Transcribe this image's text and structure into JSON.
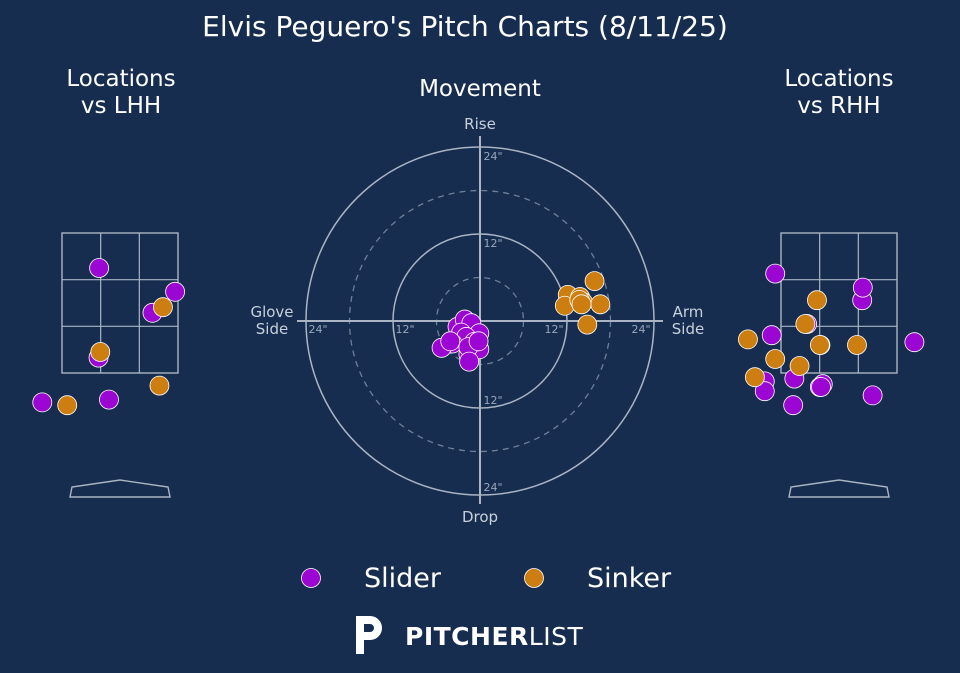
{
  "title": "Elvis Peguero's Pitch Charts (8/11/25)",
  "panels": {
    "lhh_title": "Locations\nvs LHH",
    "movement_title": "Movement",
    "rhh_title": "Locations\nvs RHH"
  },
  "movement_labels": {
    "rise": "Rise",
    "drop": "Drop",
    "glove_side": "Glove\nSide",
    "arm_side": "Arm\nSide",
    "ring_ticks": [
      "24\"",
      "12\"",
      "12\"",
      "24\"",
      "24\"",
      "12\"",
      "12\"",
      "24\""
    ]
  },
  "legend": [
    {
      "label": "Slider",
      "color": "#9b06d3"
    },
    {
      "label": "Sinker",
      "color": "#cc7e10"
    }
  ],
  "brand": {
    "bold": "PITCHER",
    "light": "LIST"
  },
  "colors": {
    "background": "#162d4f",
    "slider": "#9b06d3",
    "sinker": "#cc7e10",
    "grid": "#aab4c4"
  },
  "chart_data": [
    {
      "type": "scatter",
      "title": "Locations vs LHH",
      "x_unit": "zone width (-1 left edge, 1 right edge)",
      "y_unit": "zone height (0 bottom, 1 top)",
      "series": [
        {
          "name": "Slider",
          "points": [
            [
              -0.36,
              0.75
            ],
            [
              0.95,
              0.58
            ],
            [
              0.56,
              0.43
            ],
            [
              -0.37,
              0.11
            ],
            [
              -1.34,
              -0.21
            ],
            [
              -0.19,
              -0.19
            ]
          ]
        },
        {
          "name": "Sinker",
          "points": [
            [
              0.74,
              0.47
            ],
            [
              -0.34,
              0.15
            ],
            [
              0.68,
              -0.09
            ],
            [
              -0.91,
              -0.23
            ]
          ]
        }
      ]
    },
    {
      "type": "scatter",
      "title": "Movement",
      "x_unit": "inches (negative glove side, positive arm side)",
      "y_unit": "inches (positive rise, negative drop)",
      "x_range": [
        -24,
        24
      ],
      "y_range": [
        -24,
        24
      ],
      "series": [
        {
          "name": "Slider",
          "points": [
            [
              -3.1,
              -0.8
            ],
            [
              -2.1,
              0.2
            ],
            [
              -1.2,
              -0.3
            ],
            [
              -2.6,
              -1.6
            ],
            [
              -0.1,
              -1.7
            ],
            [
              -1.9,
              -2.2
            ],
            [
              -3.8,
              -3.1
            ],
            [
              -5.3,
              -3.7
            ],
            [
              -1.6,
              -4.6
            ],
            [
              -0.1,
              -3.9
            ],
            [
              -0.8,
              -2.9
            ],
            [
              -1.6,
              -3.6
            ],
            [
              -4.1,
              -2.8
            ],
            [
              -1.5,
              -5.6
            ],
            [
              -0.2,
              -2.8
            ]
          ]
        },
        {
          "name": "Sinker",
          "points": [
            [
              15.8,
              5.5
            ],
            [
              12.1,
              3.6
            ],
            [
              13.8,
              3.3
            ],
            [
              14.2,
              2.6
            ],
            [
              16.6,
              2.3
            ],
            [
              11.7,
              2.1
            ],
            [
              13.9,
              2.5
            ],
            [
              13.7,
              2.9
            ],
            [
              14.0,
              2.3
            ],
            [
              14.8,
              -0.5
            ]
          ]
        }
      ]
    },
    {
      "type": "scatter",
      "title": "Locations vs RHH",
      "x_unit": "zone width (-1 left edge, 1 right edge)",
      "y_unit": "zone height (0 bottom, 1 top)",
      "series": [
        {
          "name": "Slider",
          "points": [
            [
              -1.1,
              0.71
            ],
            [
              0.4,
              0.52
            ],
            [
              0.41,
              0.61
            ],
            [
              -0.55,
              0.35
            ],
            [
              -1.16,
              0.27
            ],
            [
              -0.32,
              0.2
            ],
            [
              -1.28,
              -0.06
            ],
            [
              -1.28,
              -0.13
            ],
            [
              -0.77,
              -0.04
            ],
            [
              -0.79,
              -0.23
            ],
            [
              -0.28,
              -0.08
            ],
            [
              -0.33,
              -0.1
            ],
            [
              0.58,
              -0.16
            ],
            [
              -0.31,
              -0.1
            ],
            [
              1.3,
              0.22
            ]
          ]
        },
        {
          "name": "Sinker",
          "points": [
            [
              -0.38,
              0.52
            ],
            [
              -0.58,
              0.35
            ],
            [
              -1.57,
              0.24
            ],
            [
              -0.33,
              0.2
            ],
            [
              -1.1,
              0.1
            ],
            [
              -0.68,
              0.05
            ],
            [
              -1.45,
              -0.03
            ],
            [
              2.5,
              0.25
            ],
            [
              0.31,
              0.2
            ]
          ]
        }
      ]
    }
  ]
}
